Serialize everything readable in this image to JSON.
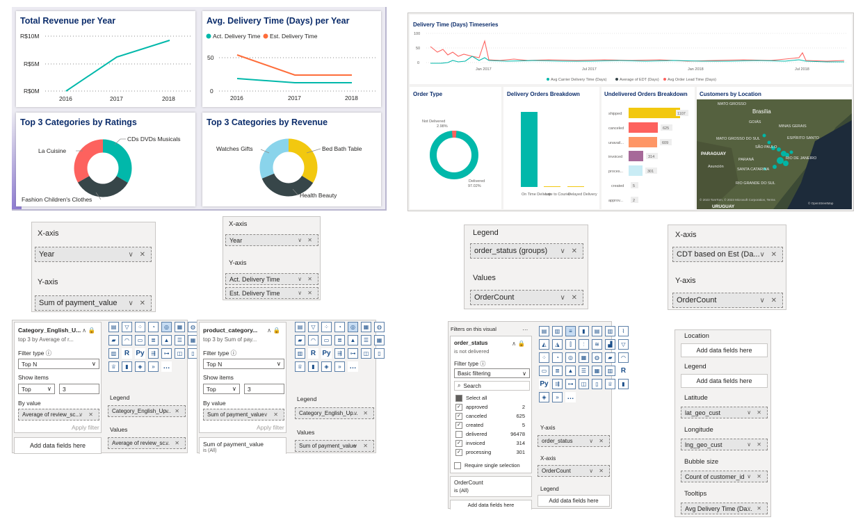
{
  "dashboard1": {
    "revenue": {
      "title": "Total Revenue per Year",
      "y_ticks": [
        "R$10M",
        "R$5M",
        "R$0M"
      ],
      "x_ticks": [
        "2016",
        "2017",
        "2018"
      ]
    },
    "delivery_time": {
      "title": "Avg. Delivery Time (Days) per Year",
      "legend": [
        "Act. Delivery Time",
        "Est. Delivery Time"
      ],
      "y_ticks": [
        "50",
        "0"
      ],
      "x_ticks": [
        "2016",
        "2017",
        "2018"
      ]
    },
    "ratings": {
      "title": "Top 3 Categories by Ratings",
      "labels": [
        "CDs DVDs Musicals",
        "La Cuisine",
        "Fashion Children's Clothes"
      ]
    },
    "cat_revenue": {
      "title": "Top 3 Categories by Revenue",
      "labels": [
        "Watches Gifts",
        "Bed Bath Table",
        "Health Beauty"
      ]
    }
  },
  "chart_data": [
    {
      "type": "line",
      "title": "Total Revenue per Year",
      "x": [
        "2016",
        "2017",
        "2018"
      ],
      "series": [
        {
          "values": [
            0.05,
            6.9,
            9.5
          ]
        }
      ],
      "ylabel": "",
      "ylim": [
        0,
        10
      ],
      "y_unit": "R$M"
    },
    {
      "type": "line",
      "title": "Avg. Delivery Time (Days) per Year",
      "x": [
        "2016",
        "2017",
        "2018"
      ],
      "series": [
        {
          "name": "Act. Delivery Time",
          "values": [
            19,
            12,
            12
          ]
        },
        {
          "name": "Est. Delivery Time",
          "values": [
            57,
            24,
            24
          ]
        }
      ],
      "ylim": [
        0,
        70
      ]
    },
    {
      "type": "pie",
      "title": "Top 3 Categories by Ratings",
      "categories": [
        "CDs DVDs Musicals",
        "Fashion Children's Clothes",
        "La Cuisine"
      ],
      "values": [
        33.4,
        33.3,
        33.3
      ]
    },
    {
      "type": "pie",
      "title": "Top 3 Categories by Revenue",
      "categories": [
        "Bed Bath Table",
        "Health Beauty",
        "Watches Gifts"
      ],
      "values": [
        34,
        35,
        31
      ]
    },
    {
      "type": "pie",
      "title": "Order Type",
      "categories": [
        "Delivered",
        "Not Delivered"
      ],
      "values": [
        97.02,
        2.98
      ]
    },
    {
      "type": "bar",
      "title": "Delivery Orders Breakdown",
      "categories": [
        "On Time Delivery",
        "Late to Courier",
        "Delayed Delivery"
      ],
      "values": [
        88,
        1,
        1
      ]
    },
    {
      "type": "bar",
      "title": "Undelivered Orders Breakdown",
      "categories": [
        "shipped",
        "canceled",
        "unavail...",
        "invoiced",
        "proces...",
        "created",
        "approv..."
      ],
      "values": [
        1107,
        625,
        609,
        314,
        301,
        5,
        2
      ]
    }
  ],
  "dashboard2": {
    "timeseries": {
      "title": "Delivery Time (Days) Timeseries",
      "y_ticks": [
        "100",
        "50",
        "0"
      ],
      "x_ticks": [
        "Jan 2017",
        "Jul 2017",
        "Jan 2018",
        "Jul 2018"
      ],
      "legend": [
        "Avg Carrier Delivery Time (Days)",
        "Average of EDT (Days)",
        "Avg Order Lead Time (Days)"
      ]
    },
    "order_type": {
      "title": "Order Type",
      "not_delivered": "Not Delivered",
      "not_delivered_pct": "2.98%",
      "delivered": "Delivered",
      "delivered_pct": "97.02%"
    },
    "breakdown": {
      "title": "Delivery Orders Breakdown",
      "labels": [
        "On Time Delivery",
        "Late to Courier",
        "Delayed Delivery"
      ]
    },
    "undelivered": {
      "title": "Undelivered Orders Breakdown",
      "rows": [
        {
          "label": "shipped",
          "value": "1107"
        },
        {
          "label": "canceled",
          "value": "625"
        },
        {
          "label": "unavail...",
          "value": "609"
        },
        {
          "label": "invoiced",
          "value": "314"
        },
        {
          "label": "proces...",
          "value": "301"
        },
        {
          "label": "created",
          "value": "5"
        },
        {
          "label": "approv...",
          "value": "2"
        }
      ]
    },
    "map": {
      "title": "Customers by Location",
      "places": [
        "MATO GROSSO",
        "Brasília",
        "GOIÁS",
        "MINAS GERAIS",
        "MATO GROSSO DO SUL",
        "ESPÍRITO SANTO",
        "SÃO PAULO",
        "RIO DE JANEIRO",
        "PARAGUAY",
        "PARANÁ",
        "Asunción",
        "SANTA CATARINA",
        "RIO GRANDE DO SUL",
        "URUGUAY"
      ],
      "credit": "© 2023 TomTom, © 2023 Microsoft Corporation, Terms",
      "credit2": "© OpenStreetMap"
    }
  },
  "wells": {
    "revenue_well": {
      "x_label": "X-axis",
      "x_field": "Year",
      "y_label": "Y-axis",
      "y_field": "Sum of payment_value"
    },
    "delivery_well": {
      "x_label": "X-axis",
      "x_field": "Year",
      "y_label": "Y-axis",
      "y_fields": [
        "Act. Delivery Time",
        "Est. Delivery Time"
      ]
    },
    "donut_well": {
      "legend_label": "Legend",
      "legend_field": "order_status (groups)",
      "values_label": "Values",
      "values_field": "OrderCount"
    },
    "bar_well": {
      "x_label": "X-axis",
      "x_field": "CDT based on Est (Da...",
      "y_label": "Y-axis",
      "y_field": "OrderCount"
    }
  },
  "filter1": {
    "field": "Category_English_U...",
    "desc": "top 3 by Average of r...",
    "filter_type_label": "Filter type ⓘ",
    "filter_type": "Top N",
    "show_items_label": "Show items",
    "show": "Top",
    "count": "3",
    "by_value_label": "By value",
    "by_value": "Average of review_sc...",
    "apply": "Apply filter",
    "add": "Add data fields here",
    "legend_label": "Legend",
    "legend_field": "Category_English_Up...",
    "values_label": "Values",
    "values_field": "Average of review_sc..."
  },
  "filter2": {
    "field": "product_category...",
    "desc": "top 3 by Sum of pay...",
    "filter_type_label": "Filter type ⓘ",
    "filter_type": "Top N",
    "show_items_label": "Show items",
    "show": "Top",
    "count": "3",
    "by_value_label": "By value",
    "by_value": "Sum of payment_value",
    "apply": "Apply filter",
    "bottom": "Sum of payment_value",
    "bottom2": "is (All)",
    "legend_label": "Legend",
    "legend_field": "Category_English_Up...",
    "values_label": "Values",
    "values_field": "Sum of payment_value"
  },
  "filter3": {
    "header": "Filters on this visual",
    "field": "order_status",
    "desc": "is not delivered",
    "filter_type_label": "Filter type ⓘ",
    "filter_type": "Basic filtering",
    "search": "Search",
    "select_all": "Select all",
    "items": [
      {
        "label": "approved",
        "count": "2"
      },
      {
        "label": "canceled",
        "count": "625"
      },
      {
        "label": "created",
        "count": "5"
      },
      {
        "label": "delivered",
        "count": "96478"
      },
      {
        "label": "invoiced",
        "count": "314"
      },
      {
        "label": "processing",
        "count": "301"
      }
    ],
    "require": "Require single selection",
    "oc_field": "OrderCount",
    "oc_desc": "is (All)",
    "add": "Add data fields here",
    "y_label": "Y-axis",
    "y_field": "order_status",
    "x_label": "X-axis",
    "x_field": "OrderCount",
    "legend_label": "Legend",
    "legend_add": "Add data fields here"
  },
  "map_well": {
    "location_label": "Location",
    "location_add": "Add data fields here",
    "legend_label": "Legend",
    "legend_add": "Add data fields here",
    "lat_label": "Latitude",
    "lat_field": "lat_geo_cust",
    "lng_label": "Longitude",
    "lng_field": "lng_geo_cust",
    "bubble_label": "Bubble size",
    "bubble_field": "Count of customer_id",
    "tooltips_label": "Tooltips",
    "tooltips_field": "Avg Delivery Time (Da..."
  },
  "colors": {
    "teal": "#01b8aa",
    "orange": "#fe6d3a",
    "red": "#fd625e",
    "dark": "#374649",
    "yellow": "#f2c80f",
    "sky": "#8ad4eb",
    "purple": "#a66999",
    "title_blue": "#0c2d6b"
  }
}
